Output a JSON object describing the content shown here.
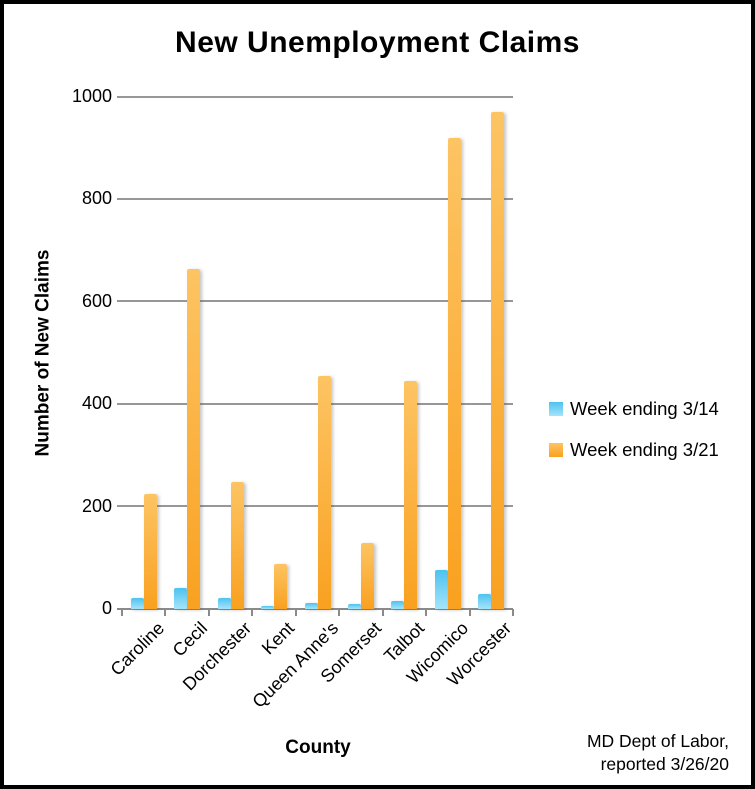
{
  "title": "New Unemployment Claims",
  "y_axis": {
    "title": "Number of New Claims"
  },
  "x_axis": {
    "title": "County"
  },
  "source": {
    "line1": "MD Dept of Labor,",
    "line2": "reported 3/26/20"
  },
  "colors": {
    "blue_top": "#4EC2EF",
    "blue_bottom": "#A5E4FA",
    "orange_top": "#FDC463",
    "orange_bottom": "#F9A120",
    "gridline": "#979797",
    "axis": "#8A8A8A"
  },
  "chart_data": {
    "type": "bar",
    "title": "New Unemployment Claims",
    "xlabel": "County",
    "ylabel": "Number of New Claims",
    "ylim": [
      0,
      1000
    ],
    "yticks": [
      0,
      200,
      400,
      600,
      800,
      1000
    ],
    "grid": true,
    "legend_position": "right",
    "categories": [
      "Caroline",
      "Cecil",
      "Dorchester",
      "Kent",
      "Queen Anne's",
      "Somerset",
      "Talbot",
      "Wicomico",
      "Worcester"
    ],
    "series": [
      {
        "name": "Week ending 3/14",
        "color": "#56C7F2",
        "gradient": [
          "#4EC2EF",
          "#A5E4FA"
        ],
        "values": [
          22,
          41,
          22,
          5,
          11,
          10,
          15,
          77,
          30
        ]
      },
      {
        "name": "Week ending 3/21",
        "color": "#FBA92E",
        "gradient": [
          "#FDC463",
          "#F9A120"
        ],
        "values": [
          225,
          665,
          248,
          88,
          455,
          128,
          445,
          920,
          970
        ]
      }
    ]
  }
}
